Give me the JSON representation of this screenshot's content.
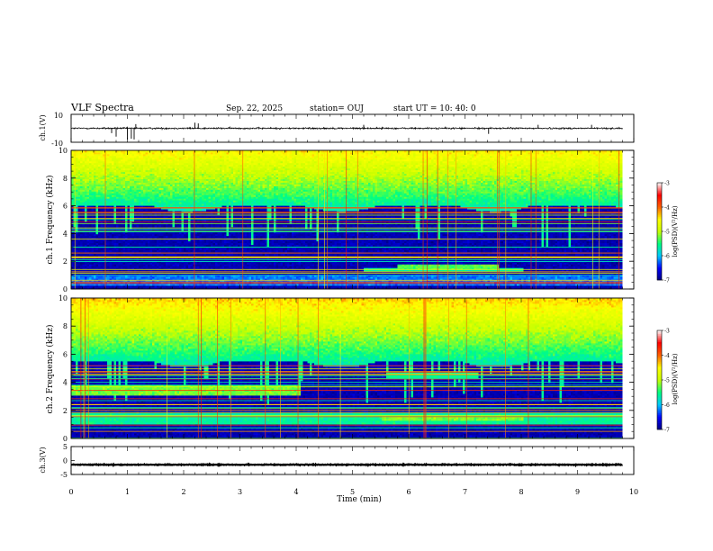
{
  "header": {
    "title": "VLF Spectra",
    "date": "Sep. 22, 2025",
    "station": "station= OUJ",
    "start_ut": "start  UT =   10: 40: 0"
  },
  "chart_data": [
    {
      "type": "line",
      "name": "ch1-waveform",
      "ylabel": "ch.1(V)",
      "ylim": [
        -10,
        10
      ],
      "yticks": [
        "10",
        "-10"
      ],
      "xlim": [
        0,
        10
      ],
      "baseline": 0,
      "noise_level": 1.0,
      "spikes": [
        {
          "t": 0.72,
          "v": -3.5
        },
        {
          "t": 0.8,
          "v": -6.0
        },
        {
          "t": 1.0,
          "v": -8.0
        },
        {
          "t": 1.07,
          "v": -7.5
        },
        {
          "t": 1.12,
          "v": -8.0
        },
        {
          "t": 1.15,
          "v": 3.0
        },
        {
          "t": 2.2,
          "v": 4.0
        },
        {
          "t": 2.26,
          "v": 3.5
        },
        {
          "t": 5.2,
          "v": 2.5
        },
        {
          "t": 7.42,
          "v": -4.0
        },
        {
          "t": 8.3,
          "v": 2.5
        },
        {
          "t": 9.25,
          "v": 2.5
        }
      ],
      "data_end": 9.8
    },
    {
      "type": "heatmap",
      "name": "ch1-spectrogram",
      "ylabel": "ch.1  Frequency  (kHz)",
      "xlim": [
        0,
        10
      ],
      "ylim": [
        0,
        10
      ],
      "yticks": [
        "0",
        "2",
        "4",
        "6",
        "8",
        "10"
      ],
      "data_end": 9.8,
      "colorbar": {
        "label": "log(PSD)(V²/Hz)",
        "range": [
          -7,
          -3
        ],
        "ticks": [
          "-3",
          "-4",
          "-5",
          "-6",
          "-7"
        ],
        "colormap": [
          "#000080",
          "#0000ff",
          "#00c8ff",
          "#00ff80",
          "#c8ff00",
          "#ffff00",
          "#ff6000",
          "#ff0000",
          "#ffffff"
        ]
      },
      "noise_top_khz": 6.0,
      "bands": [
        {
          "t0": 0,
          "t1": 10,
          "f0": 0.2,
          "f1": 1.0,
          "level": -6.2
        },
        {
          "t0": 5.8,
          "t1": 7.6,
          "f0": 1.3,
          "f1": 1.7,
          "level": -5.3
        },
        {
          "t0": 5.2,
          "t1": 8.0,
          "f0": 1.2,
          "f1": 1.5,
          "level": -5.6
        }
      ]
    },
    {
      "type": "heatmap",
      "name": "ch2-spectrogram",
      "ylabel": "ch.2  Frequency  (kHz)",
      "xlim": [
        0,
        10
      ],
      "ylim": [
        0,
        10
      ],
      "yticks": [
        "0",
        "2",
        "4",
        "6",
        "8",
        "10"
      ],
      "data_end": 9.8,
      "colorbar": {
        "label": "log(PSD)(V²/Hz)",
        "range": [
          -7,
          -3
        ],
        "ticks": [
          "-3",
          "-4",
          "-5",
          "-6",
          "-7"
        ],
        "colormap": [
          "#000080",
          "#0000ff",
          "#00c8ff",
          "#00ff80",
          "#c8ff00",
          "#ffff00",
          "#ff6000",
          "#ff0000",
          "#ffffff"
        ]
      },
      "noise_top_khz": 5.5,
      "bands": [
        {
          "t0": 0,
          "t1": 4.05,
          "f0": 3.0,
          "f1": 3.8,
          "level": -5.2
        },
        {
          "t0": 0,
          "t1": 10,
          "f0": 1.0,
          "f1": 1.8,
          "level": -5.6
        },
        {
          "t0": 5.5,
          "t1": 8.0,
          "f0": 1.2,
          "f1": 1.6,
          "level": -5.2
        },
        {
          "t0": 5.6,
          "t1": 7.2,
          "f0": 4.2,
          "f1": 4.7,
          "level": -5.6
        }
      ]
    },
    {
      "type": "line",
      "name": "ch3-waveform",
      "ylabel": "ch.3(V)",
      "ylim": [
        -5,
        5
      ],
      "yticks": [
        "5",
        "0",
        "-5"
      ],
      "xlim": [
        0,
        10
      ],
      "baseline": -1.5,
      "noise_level": 0.25,
      "data_end": 9.8
    }
  ],
  "xaxis": {
    "label": "Time  (min)",
    "ticks": [
      "0",
      "1",
      "2",
      "3",
      "4",
      "5",
      "6",
      "7",
      "8",
      "9",
      "10"
    ]
  }
}
